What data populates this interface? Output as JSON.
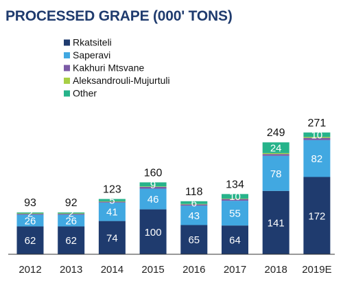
{
  "chart_data": {
    "type": "bar",
    "stacked": true,
    "title": "PROCESSED GRAPE (000' TONS)",
    "categories": [
      "2012",
      "2013",
      "2014",
      "2015",
      "2016",
      "2017",
      "2018",
      "2019E"
    ],
    "series": [
      {
        "name": "Rkatsiteli",
        "color": "#1f3b6e",
        "values": [
          62,
          62,
          74,
          100,
          65,
          64,
          141,
          172
        ],
        "show_labels": true
      },
      {
        "name": "Saperavi",
        "color": "#41a8e1",
        "values": [
          26,
          26,
          41,
          46,
          43,
          55,
          78,
          82
        ],
        "show_labels": true
      },
      {
        "name": "Kakhuri Mtsvane",
        "color": "#7b5aa6",
        "values": [
          2,
          2,
          2,
          4,
          3,
          4,
          4,
          5
        ],
        "show_labels": false
      },
      {
        "name": "Aleksandrouli-Mujurtuli",
        "color": "#a8cf45",
        "values": [
          1,
          1,
          1,
          1,
          1,
          1,
          2,
          2
        ],
        "show_labels": false
      },
      {
        "name": "Other",
        "color": "#26b38a",
        "values": [
          2,
          2,
          5,
          9,
          6,
          10,
          24,
          10
        ],
        "show_labels": true
      }
    ],
    "totals": [
      93,
      92,
      123,
      160,
      118,
      134,
      249,
      271
    ],
    "legend": "top-left",
    "grid": false,
    "ylim": [
      0,
      280
    ]
  }
}
